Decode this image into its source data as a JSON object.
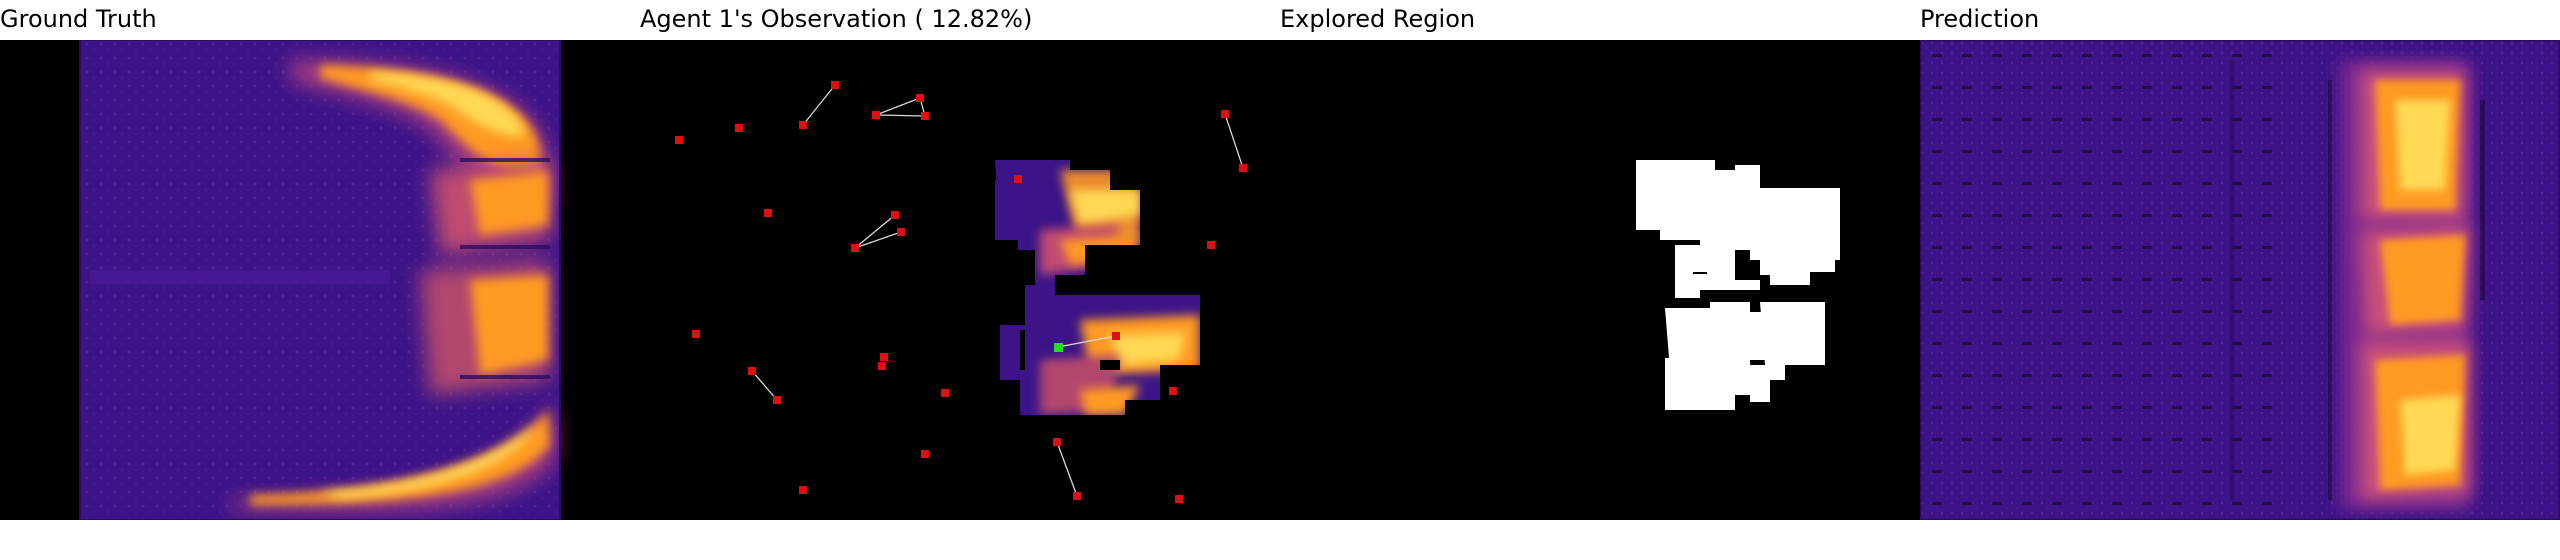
{
  "panels": {
    "ground_truth_title": "Ground Truth",
    "observation_title": "Agent 1's Observation ( 12.82%)",
    "explored_title": "Explored Region",
    "prediction_title": "Prediction"
  },
  "observation": {
    "coverage_percent": 12.82
  },
  "colors": {
    "background": "#000000",
    "field_low": "#3a1080",
    "field_mid": "#9a2a8a",
    "field_high": "#ff9a20",
    "field_peak": "#ffe060",
    "agent_marker": "#e01010",
    "self_agent_marker": "#20e020",
    "explored_mask": "#ffffff",
    "link_line": "#d8d8d8"
  },
  "icons": {
    "agent": "agent-marker-icon",
    "self_agent": "self-agent-marker-icon"
  }
}
